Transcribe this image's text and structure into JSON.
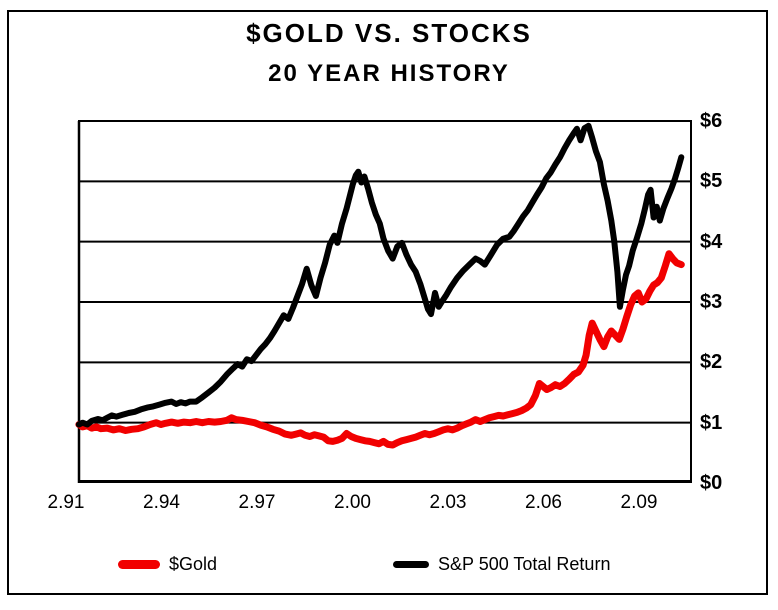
{
  "window": {
    "background": "#ffffff",
    "border_color": "#000000"
  },
  "title": {
    "line1": "$GOLD VS. STOCKS",
    "line2": "20 YEAR HISTORY"
  },
  "legend": {
    "items": [
      {
        "label": "$Gold",
        "color": "#f10000"
      },
      {
        "label": "S&P 500 Total Return",
        "color": "#000000"
      }
    ]
  },
  "chart_data": {
    "type": "line",
    "title": "$GOLD VS. STOCKS",
    "subtitle": "20 YEAR HISTORY",
    "grid": true,
    "legend_position": "bottom",
    "x_axis": {
      "tick_labels": [
        "2.91",
        "2.94",
        "2.97",
        "2.00",
        "2.03",
        "2.06",
        "2.09"
      ],
      "range_years": [
        1991.05,
        2011.05
      ],
      "label_meaning": "Feb of year, e.g. 2.91 = Feb 1991"
    },
    "y_axis": {
      "tick_labels": [
        "$0",
        "$1",
        "$2",
        "$3",
        "$4",
        "$5",
        "$6"
      ],
      "tick_values": [
        0,
        1,
        2,
        3,
        4,
        5,
        6
      ],
      "range": [
        0,
        6
      ],
      "unit": "growth of $1"
    },
    "series": [
      {
        "name": "$Gold",
        "color": "#f10000",
        "points": [
          [
            1991.08,
            0.97
          ],
          [
            1991.2,
            0.93
          ],
          [
            1991.35,
            0.95
          ],
          [
            1991.5,
            0.91
          ],
          [
            1991.65,
            0.93
          ],
          [
            1991.8,
            0.9
          ],
          [
            1992.0,
            0.91
          ],
          [
            1992.2,
            0.88
          ],
          [
            1992.4,
            0.9
          ],
          [
            1992.6,
            0.87
          ],
          [
            1992.8,
            0.89
          ],
          [
            1993.0,
            0.9
          ],
          [
            1993.2,
            0.93
          ],
          [
            1993.4,
            0.97
          ],
          [
            1993.6,
            1.0
          ],
          [
            1993.75,
            0.97
          ],
          [
            1993.9,
            0.99
          ],
          [
            1994.1,
            1.01
          ],
          [
            1994.3,
            0.99
          ],
          [
            1994.5,
            1.01
          ],
          [
            1994.7,
            1.0
          ],
          [
            1994.9,
            1.02
          ],
          [
            1995.1,
            1.0
          ],
          [
            1995.3,
            1.02
          ],
          [
            1995.5,
            1.01
          ],
          [
            1995.7,
            1.02
          ],
          [
            1995.9,
            1.04
          ],
          [
            1996.05,
            1.08
          ],
          [
            1996.2,
            1.05
          ],
          [
            1996.4,
            1.04
          ],
          [
            1996.6,
            1.02
          ],
          [
            1996.8,
            1.0
          ],
          [
            1997.0,
            0.96
          ],
          [
            1997.2,
            0.93
          ],
          [
            1997.4,
            0.89
          ],
          [
            1997.6,
            0.86
          ],
          [
            1997.8,
            0.81
          ],
          [
            1998.0,
            0.79
          ],
          [
            1998.15,
            0.81
          ],
          [
            1998.3,
            0.83
          ],
          [
            1998.45,
            0.79
          ],
          [
            1998.6,
            0.77
          ],
          [
            1998.75,
            0.8
          ],
          [
            1998.9,
            0.78
          ],
          [
            1999.05,
            0.76
          ],
          [
            1999.2,
            0.7
          ],
          [
            1999.35,
            0.69
          ],
          [
            1999.5,
            0.71
          ],
          [
            1999.65,
            0.74
          ],
          [
            1999.8,
            0.82
          ],
          [
            1999.95,
            0.77
          ],
          [
            2000.1,
            0.74
          ],
          [
            2000.25,
            0.72
          ],
          [
            2000.4,
            0.7
          ],
          [
            2000.55,
            0.69
          ],
          [
            2000.7,
            0.67
          ],
          [
            2000.85,
            0.65
          ],
          [
            2001.0,
            0.69
          ],
          [
            2001.15,
            0.64
          ],
          [
            2001.3,
            0.63
          ],
          [
            2001.45,
            0.67
          ],
          [
            2001.6,
            0.7
          ],
          [
            2001.75,
            0.72
          ],
          [
            2001.9,
            0.74
          ],
          [
            2002.05,
            0.76
          ],
          [
            2002.2,
            0.79
          ],
          [
            2002.35,
            0.82
          ],
          [
            2002.5,
            0.8
          ],
          [
            2002.65,
            0.82
          ],
          [
            2002.8,
            0.85
          ],
          [
            2002.95,
            0.88
          ],
          [
            2003.1,
            0.9
          ],
          [
            2003.25,
            0.88
          ],
          [
            2003.4,
            0.91
          ],
          [
            2003.55,
            0.95
          ],
          [
            2003.7,
            0.98
          ],
          [
            2003.85,
            1.01
          ],
          [
            2004.0,
            1.05
          ],
          [
            2004.15,
            1.02
          ],
          [
            2004.3,
            1.05
          ],
          [
            2004.45,
            1.08
          ],
          [
            2004.6,
            1.1
          ],
          [
            2004.75,
            1.12
          ],
          [
            2004.9,
            1.11
          ],
          [
            2005.05,
            1.13
          ],
          [
            2005.2,
            1.15
          ],
          [
            2005.35,
            1.17
          ],
          [
            2005.5,
            1.2
          ],
          [
            2005.65,
            1.24
          ],
          [
            2005.8,
            1.3
          ],
          [
            2005.95,
            1.45
          ],
          [
            2006.08,
            1.65
          ],
          [
            2006.2,
            1.6
          ],
          [
            2006.32,
            1.55
          ],
          [
            2006.45,
            1.58
          ],
          [
            2006.6,
            1.63
          ],
          [
            2006.75,
            1.6
          ],
          [
            2006.9,
            1.65
          ],
          [
            2007.05,
            1.72
          ],
          [
            2007.2,
            1.8
          ],
          [
            2007.35,
            1.84
          ],
          [
            2007.5,
            1.95
          ],
          [
            2007.6,
            2.12
          ],
          [
            2007.7,
            2.45
          ],
          [
            2007.8,
            2.65
          ],
          [
            2007.92,
            2.52
          ],
          [
            2008.05,
            2.38
          ],
          [
            2008.18,
            2.26
          ],
          [
            2008.3,
            2.42
          ],
          [
            2008.42,
            2.52
          ],
          [
            2008.55,
            2.45
          ],
          [
            2008.68,
            2.38
          ],
          [
            2008.8,
            2.55
          ],
          [
            2008.92,
            2.75
          ],
          [
            2009.05,
            2.95
          ],
          [
            2009.18,
            3.1
          ],
          [
            2009.3,
            3.15
          ],
          [
            2009.42,
            3.0
          ],
          [
            2009.55,
            3.05
          ],
          [
            2009.68,
            3.18
          ],
          [
            2009.8,
            3.28
          ],
          [
            2009.92,
            3.32
          ],
          [
            2010.05,
            3.4
          ],
          [
            2010.18,
            3.6
          ],
          [
            2010.3,
            3.8
          ],
          [
            2010.42,
            3.72
          ],
          [
            2010.55,
            3.65
          ],
          [
            2010.7,
            3.62
          ]
        ]
      },
      {
        "name": "S&P 500 Total Return",
        "color": "#000000",
        "points": [
          [
            1991.08,
            0.97
          ],
          [
            1991.2,
            1.0
          ],
          [
            1991.35,
            0.97
          ],
          [
            1991.5,
            1.03
          ],
          [
            1991.7,
            1.06
          ],
          [
            1991.85,
            1.04
          ],
          [
            1992.0,
            1.08
          ],
          [
            1992.15,
            1.12
          ],
          [
            1992.3,
            1.1
          ],
          [
            1992.5,
            1.13
          ],
          [
            1992.7,
            1.16
          ],
          [
            1992.9,
            1.18
          ],
          [
            1993.1,
            1.22
          ],
          [
            1993.3,
            1.25
          ],
          [
            1993.5,
            1.27
          ],
          [
            1993.7,
            1.3
          ],
          [
            1993.9,
            1.33
          ],
          [
            1994.1,
            1.35
          ],
          [
            1994.25,
            1.31
          ],
          [
            1994.4,
            1.34
          ],
          [
            1994.55,
            1.32
          ],
          [
            1994.7,
            1.35
          ],
          [
            1994.9,
            1.35
          ],
          [
            1995.1,
            1.42
          ],
          [
            1995.3,
            1.5
          ],
          [
            1995.5,
            1.58
          ],
          [
            1995.7,
            1.68
          ],
          [
            1995.9,
            1.8
          ],
          [
            1996.1,
            1.9
          ],
          [
            1996.25,
            1.97
          ],
          [
            1996.4,
            1.93
          ],
          [
            1996.55,
            2.05
          ],
          [
            1996.7,
            2.02
          ],
          [
            1996.85,
            2.12
          ],
          [
            1997.0,
            2.22
          ],
          [
            1997.15,
            2.3
          ],
          [
            1997.3,
            2.4
          ],
          [
            1997.45,
            2.52
          ],
          [
            1997.6,
            2.65
          ],
          [
            1997.75,
            2.78
          ],
          [
            1997.9,
            2.72
          ],
          [
            1998.05,
            2.9
          ],
          [
            1998.2,
            3.1
          ],
          [
            1998.35,
            3.3
          ],
          [
            1998.5,
            3.55
          ],
          [
            1998.65,
            3.28
          ],
          [
            1998.8,
            3.1
          ],
          [
            1998.95,
            3.4
          ],
          [
            1999.1,
            3.65
          ],
          [
            1999.25,
            3.95
          ],
          [
            1999.4,
            4.1
          ],
          [
            1999.5,
            3.98
          ],
          [
            1999.65,
            4.3
          ],
          [
            1999.8,
            4.55
          ],
          [
            1999.9,
            4.75
          ],
          [
            2000.0,
            4.95
          ],
          [
            2000.1,
            5.1
          ],
          [
            2000.18,
            5.16
          ],
          [
            2000.28,
            4.98
          ],
          [
            2000.38,
            5.08
          ],
          [
            2000.5,
            4.88
          ],
          [
            2000.62,
            4.65
          ],
          [
            2000.75,
            4.45
          ],
          [
            2000.88,
            4.3
          ],
          [
            2001.0,
            4.05
          ],
          [
            2001.15,
            3.85
          ],
          [
            2001.3,
            3.72
          ],
          [
            2001.45,
            3.92
          ],
          [
            2001.6,
            3.98
          ],
          [
            2001.75,
            3.78
          ],
          [
            2001.9,
            3.62
          ],
          [
            2002.05,
            3.5
          ],
          [
            2002.2,
            3.3
          ],
          [
            2002.32,
            3.1
          ],
          [
            2002.45,
            2.88
          ],
          [
            2002.55,
            2.8
          ],
          [
            2002.68,
            3.15
          ],
          [
            2002.8,
            2.92
          ],
          [
            2002.92,
            3.02
          ],
          [
            2003.05,
            3.12
          ],
          [
            2003.2,
            3.25
          ],
          [
            2003.4,
            3.4
          ],
          [
            2003.6,
            3.52
          ],
          [
            2003.8,
            3.62
          ],
          [
            2004.0,
            3.72
          ],
          [
            2004.15,
            3.68
          ],
          [
            2004.3,
            3.62
          ],
          [
            2004.5,
            3.78
          ],
          [
            2004.7,
            3.95
          ],
          [
            2004.9,
            4.05
          ],
          [
            2005.1,
            4.08
          ],
          [
            2005.25,
            4.18
          ],
          [
            2005.4,
            4.3
          ],
          [
            2005.55,
            4.42
          ],
          [
            2005.7,
            4.52
          ],
          [
            2005.85,
            4.65
          ],
          [
            2006.0,
            4.78
          ],
          [
            2006.15,
            4.9
          ],
          [
            2006.3,
            5.05
          ],
          [
            2006.45,
            5.15
          ],
          [
            2006.6,
            5.28
          ],
          [
            2006.75,
            5.4
          ],
          [
            2006.9,
            5.55
          ],
          [
            2007.05,
            5.68
          ],
          [
            2007.2,
            5.8
          ],
          [
            2007.3,
            5.87
          ],
          [
            2007.42,
            5.68
          ],
          [
            2007.55,
            5.88
          ],
          [
            2007.68,
            5.92
          ],
          [
            2007.8,
            5.72
          ],
          [
            2007.92,
            5.5
          ],
          [
            2008.05,
            5.32
          ],
          [
            2008.18,
            4.95
          ],
          [
            2008.3,
            4.68
          ],
          [
            2008.42,
            4.35
          ],
          [
            2008.52,
            4.0
          ],
          [
            2008.62,
            3.5
          ],
          [
            2008.7,
            2.92
          ],
          [
            2008.8,
            3.2
          ],
          [
            2008.9,
            3.45
          ],
          [
            2009.0,
            3.6
          ],
          [
            2009.12,
            3.85
          ],
          [
            2009.25,
            4.05
          ],
          [
            2009.4,
            4.3
          ],
          [
            2009.52,
            4.55
          ],
          [
            2009.62,
            4.78
          ],
          [
            2009.7,
            4.86
          ],
          [
            2009.8,
            4.4
          ],
          [
            2009.9,
            4.58
          ],
          [
            2010.0,
            4.35
          ],
          [
            2010.12,
            4.55
          ],
          [
            2010.25,
            4.72
          ],
          [
            2010.38,
            4.88
          ],
          [
            2010.5,
            5.05
          ],
          [
            2010.6,
            5.22
          ],
          [
            2010.7,
            5.4
          ]
        ]
      }
    ]
  }
}
